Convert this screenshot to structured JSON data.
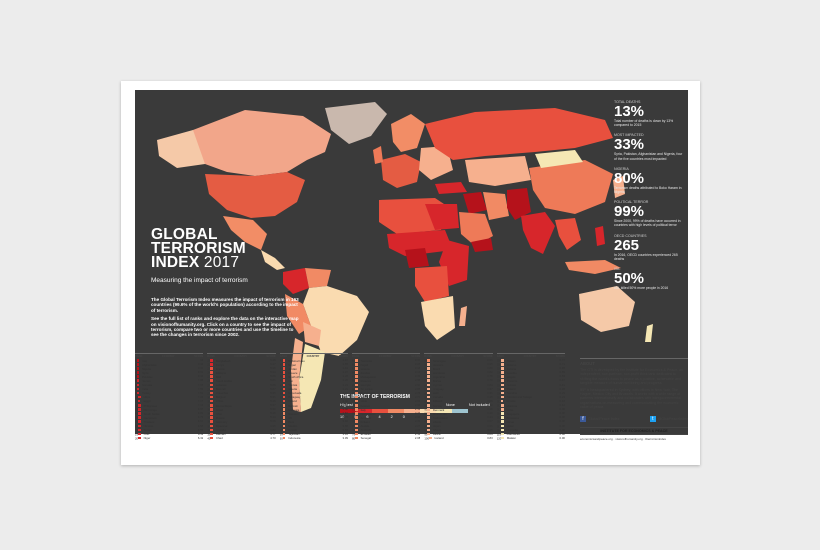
{
  "poster": {
    "title_line1": "GLOBAL",
    "title_line2": "TERRORISM",
    "title_line3_bold": "INDEX",
    "title_line3_light": "2017",
    "subtitle": "Measuring the impact of terrorism",
    "intro_p1": "The Global Terrorism Index measures the impact of terrorism in 163 countries (99.6% of the world's population) according to the impact of terrorism.",
    "intro_p2": "See the full list of ranks and explore the data on the interactive map on visionofhumanity.org. Click on a country to see the impact of terrorism, compare two or more countries and use the timeline to see the changes in terrorism since 2002."
  },
  "legend": {
    "title": "THE IMPACT OF TERRORISM",
    "highest": "Highest",
    "none": "None",
    "not_included": "Not included",
    "ticks": [
      "10",
      "8",
      "6",
      "4",
      "2",
      "0"
    ],
    "colors": [
      "#b5121b",
      "#d7262b",
      "#e8503e",
      "#f18a64",
      "#f6b08e",
      "#fadbb0",
      "#f5e7b4",
      "#9ec4cf"
    ]
  },
  "stats": [
    {
      "label": "TOTAL DEATHS",
      "value": "13%",
      "text": "Total number of deaths is down by 13% compared to 2015"
    },
    {
      "label": "MOST IMPACTED",
      "value": "33%",
      "text": "Syria, Pakistan, Afghanistan and Nigeria, four of the five countries most impacted"
    },
    {
      "label": "NIGERIA",
      "value": "80%",
      "text": "Terrorism deaths attributed to Boko Haram in Nigeria"
    },
    {
      "label": "POLITICAL TERROR",
      "value": "99%",
      "text": "Since 2000, 99% of deaths have occurred in countries with high levels of political terror"
    },
    {
      "label": "OECD COUNTRIES",
      "value": "265",
      "text": "In 2016, OECD countries experienced 265 deaths"
    },
    {
      "label": "ISIL",
      "value": "50%",
      "text": "ISIL killed 50% more people in 2016"
    }
  ],
  "ranks": {
    "headers": [
      "RANK",
      "COUNTRY",
      "SCORE"
    ],
    "columns": [
      [
        [
          "1",
          "Iraq",
          "10"
        ],
        [
          "2",
          "Afghanistan",
          "9.44"
        ],
        [
          "3",
          "Nigeria",
          "9.01"
        ],
        [
          "4",
          "Syria",
          "8.62"
        ],
        [
          "5",
          "Pakistan",
          "8.40"
        ],
        [
          "6",
          "Yemen",
          "7.88"
        ],
        [
          "7",
          "Somalia",
          "7.65"
        ],
        [
          "8",
          "India",
          "7.53"
        ],
        [
          "9",
          "Turkey",
          "7.52"
        ],
        [
          "10",
          "Libya",
          "7.26"
        ],
        [
          "11",
          "Egypt",
          "7.17"
        ],
        [
          "12",
          "Philippines",
          "7.13"
        ],
        [
          "13",
          "DR Congo",
          "6.97"
        ],
        [
          "14",
          "South Sudan",
          "6.82"
        ],
        [
          "15",
          "Cameroon",
          "6.79"
        ],
        [
          "16",
          "Thailand",
          "6.61"
        ],
        [
          "17",
          "Ukraine",
          "6.55"
        ],
        [
          "18",
          "Sudan",
          "6.53"
        ],
        [
          "19",
          "CAR",
          "6.39"
        ],
        [
          "20",
          "Niger",
          "6.32"
        ]
      ],
      [
        [
          "21",
          "Bangladesh",
          "6.18"
        ],
        [
          "22",
          "Kenya",
          "6.17"
        ],
        [
          "23",
          "France",
          "5.96"
        ],
        [
          "24",
          "Ethiopia",
          "5.93"
        ],
        [
          "25",
          "Mali",
          "5.88"
        ],
        [
          "26",
          "Saudi Arabia",
          "5.81"
        ],
        [
          "27",
          "Lebanon",
          "5.68"
        ],
        [
          "28",
          "Burundi",
          "5.67"
        ],
        [
          "29",
          "Colombia",
          "5.55"
        ],
        [
          "30",
          "Belgium",
          "5.51"
        ],
        [
          "31",
          "China",
          "5.48"
        ],
        [
          "32",
          "Mozambique",
          "5.37"
        ],
        [
          "33",
          "Israel",
          "5.30"
        ],
        [
          "34",
          "USA",
          "5.26"
        ],
        [
          "35",
          "Russia",
          "5.23"
        ],
        [
          "36",
          "Germany",
          "5.08"
        ],
        [
          "37",
          "Myanmar",
          "4.95"
        ],
        [
          "38",
          "Uganda",
          "4.82"
        ],
        [
          "39",
          "Bahrain",
          "4.77"
        ],
        [
          "40",
          "Chad",
          "4.70"
        ]
      ],
      [
        [
          "41",
          "Burkina Faso",
          "4.67"
        ],
        [
          "42",
          "Nepal",
          "4.55"
        ],
        [
          "43",
          "Jordan",
          "4.44"
        ],
        [
          "44",
          "Greece",
          "4.37"
        ],
        [
          "45",
          "South Africa",
          "4.28"
        ],
        [
          "46",
          "Iran",
          "4.26"
        ],
        [
          "47",
          "Tunisia",
          "4.24"
        ],
        [
          "48",
          "Algeria",
          "4.21"
        ],
        [
          "49",
          "Venezuela",
          "4.11"
        ],
        [
          "50",
          "Paraguay",
          "4.09"
        ],
        [
          "51",
          "Ireland",
          "4.02"
        ],
        [
          "52",
          "Bahrain",
          "3.95"
        ],
        [
          "53",
          "Malaysia",
          "3.88"
        ],
        [
          "54",
          "Sweden",
          "3.82"
        ],
        [
          "55",
          "UK",
          "3.75"
        ],
        [
          "56",
          "Peru",
          "3.66"
        ],
        [
          "57",
          "Mexico",
          "3.58"
        ],
        [
          "58",
          "Kuwait",
          "3.53"
        ],
        [
          "59",
          "Tajikistan",
          "3.45"
        ],
        [
          "60",
          "Indonesia",
          "3.39"
        ]
      ],
      [
        [
          "61",
          "Tanzania",
          "3.31"
        ],
        [
          "62",
          "Nepal",
          "3.25"
        ],
        [
          "63",
          "Greece",
          "3.18"
        ],
        [
          "64",
          "Zambia",
          "3.10"
        ],
        [
          "65",
          "Madagascar",
          "3.04"
        ],
        [
          "66",
          "Rwanda",
          "2.98"
        ],
        [
          "67",
          "Georgia",
          "2.91"
        ],
        [
          "68",
          "Sri Lanka",
          "2.85"
        ],
        [
          "69",
          "Kazakhstan",
          "2.78"
        ],
        [
          "70",
          "Spain",
          "2.71"
        ],
        [
          "71",
          "Chile",
          "2.66"
        ],
        [
          "72",
          "Kosovo",
          "2.60"
        ],
        [
          "73",
          "Italy",
          "2.54"
        ],
        [
          "74",
          "Netherlands",
          "2.47"
        ],
        [
          "75",
          "Armenia",
          "2.40"
        ],
        [
          "76",
          "Finland",
          "2.33"
        ],
        [
          "77",
          "Austria",
          "2.27"
        ],
        [
          "78",
          "Australia",
          "2.20"
        ],
        [
          "79",
          "Ecuador",
          "2.14"
        ],
        [
          "80",
          "Senegal",
          "2.08"
        ]
      ],
      [
        [
          "81",
          "Nicaragua",
          "2.01"
        ],
        [
          "82",
          "Jamaica",
          "1.95"
        ],
        [
          "83",
          "Brazil",
          "1.89"
        ],
        [
          "84",
          "Honduras",
          "1.82"
        ],
        [
          "85",
          "Argentina",
          "1.76"
        ],
        [
          "86",
          "Bolivia",
          "1.70"
        ],
        [
          "87",
          "Cyprus",
          "1.63"
        ],
        [
          "88",
          "Uruguay",
          "1.57"
        ],
        [
          "89",
          "Haiti",
          "1.51"
        ],
        [
          "90",
          "Canada",
          "1.45"
        ],
        [
          "91",
          "Djibouti",
          "1.38"
        ],
        [
          "92",
          "Norway",
          "1.32"
        ],
        [
          "93",
          "Denmark",
          "1.26"
        ],
        [
          "94",
          "Guatemala",
          "1.20"
        ],
        [
          "95",
          "Switzerland",
          "1.14"
        ],
        [
          "96",
          "Liberia",
          "1.07"
        ],
        [
          "97",
          "Japan",
          "1.01"
        ],
        [
          "98",
          "Ghana",
          "0.95"
        ],
        [
          "99",
          "Latvia",
          "0.89"
        ],
        [
          "100",
          "Iceland",
          "0.83"
        ]
      ],
      [
        [
          "101",
          "Taiwan",
          "0.77"
        ],
        [
          "102",
          "Belarus",
          "0.71"
        ],
        [
          "103",
          "Estonia",
          "0.65"
        ],
        [
          "104",
          "Lesotho",
          "0.59"
        ],
        [
          "105",
          "Angola",
          "0.53"
        ],
        [
          "106",
          "Panama",
          "0.47"
        ],
        [
          "107",
          "Guinea",
          "0.41"
        ],
        [
          "108",
          "Poland",
          "0.35"
        ],
        [
          "109",
          "Namibia",
          "0.29"
        ],
        [
          "110",
          "Trinidad and Tobago",
          "0.24"
        ],
        [
          "111",
          "Croatia",
          "0.18"
        ],
        [
          "112",
          "Moldova",
          "0.12"
        ],
        [
          "113",
          "Cuba",
          "0.06"
        ],
        [
          "114",
          "Singapore",
          "0.00"
        ],
        [
          "115",
          "Botswana",
          "0.00"
        ],
        [
          "116",
          "Oman",
          "0.00"
        ],
        [
          "117",
          "Qatar",
          "0.00"
        ],
        [
          "118",
          "Mongolia",
          "0.00"
        ],
        [
          "119",
          "Mauritania",
          "0.00"
        ],
        [
          "120",
          "Malawi",
          "0.00"
        ]
      ]
    ]
  },
  "about": {
    "heading": "ABOUT",
    "p1": "The GTI is developed by the Institute for Economics & Peace, an independent, non-partisan, non-profit think tank dedicated to shifting the world's focus to peace as a positive, achievable and tangible measure of human wellbeing and progress.",
    "p2": "IEP is headquartered in Sydney, with offices in New York, The Hague, Mexico City and Brussels. It works with a wide range of partners internationally and collaborates with intergovernmental organisations on measuring and communicating the economic value of peace.",
    "facebook": "Global Peace Index",
    "twitter": "@GlobPeaceIndex",
    "org": "INSTITUTE FOR ECONOMICS & PEACE",
    "urls": "economicsandpeace.org · visionofhumanity.org · #terrorismindex"
  }
}
